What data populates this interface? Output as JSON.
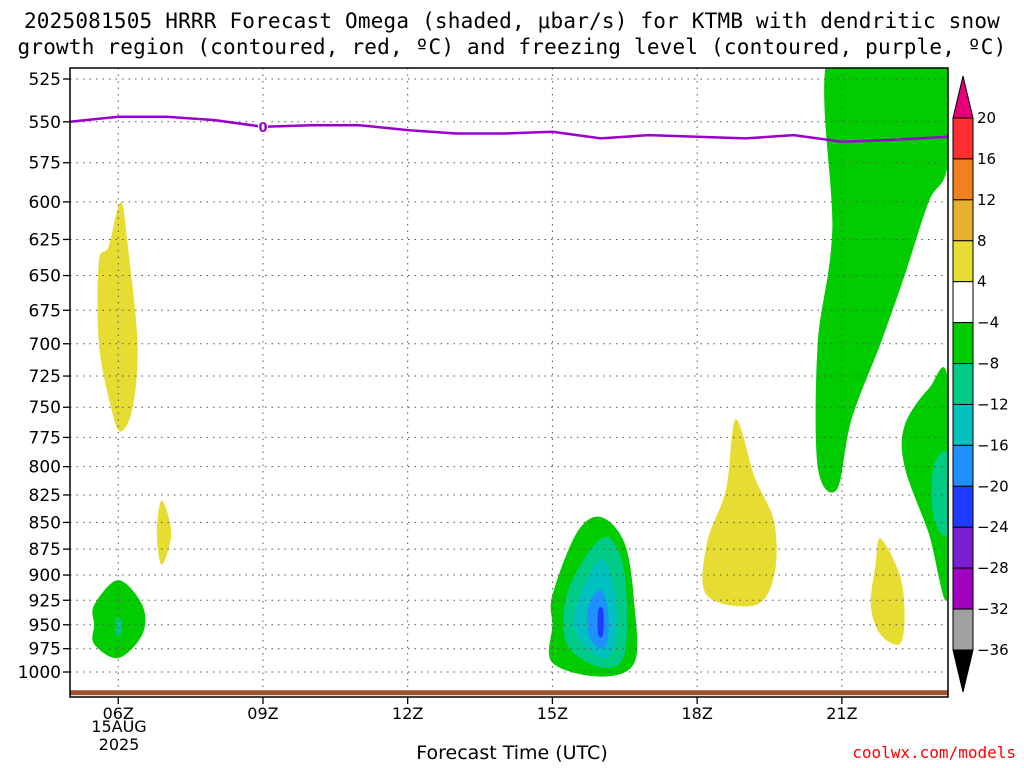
{
  "title": {
    "line1": "2025081505 HRRR Forecast Omega (shaded, μbar/s) for KTMB with dendritic snow",
    "line2": "growth region (contoured, red, ºC) and freezing level (contoured, purple, ºC)"
  },
  "xlabel": "Forecast Time (UTC)",
  "credit": "coolwx.com/models",
  "date_label": [
    "15AUG",
    "2025"
  ],
  "chart_data": {
    "type": "heatmap",
    "title": "2025081505 HRRR Forecast Omega (shaded, μbar/s) for KTMB with dendritic snow growth region (contoured, red, ºC) and freezing level (contoured, purple, ºC)",
    "xlabel": "Forecast Time (UTC)",
    "ylabel": "",
    "x_ticks": [
      "06Z",
      "09Z",
      "12Z",
      "15Z",
      "18Z",
      "21Z"
    ],
    "x_tick_hours": [
      6,
      9,
      12,
      15,
      18,
      21
    ],
    "xlim_hours": [
      5,
      23.2
    ],
    "y_ticks": [
      525,
      550,
      575,
      600,
      625,
      650,
      675,
      700,
      725,
      750,
      775,
      800,
      825,
      850,
      875,
      900,
      925,
      950,
      975,
      1000
    ],
    "ylim": [
      1030,
      505
    ],
    "y_scale": "log-pressure",
    "grid": true,
    "colorbar": {
      "levels": [
        20,
        16,
        12,
        8,
        4,
        -4,
        -8,
        -12,
        -16,
        -20,
        -24,
        -28,
        -32,
        -36
      ],
      "colors": [
        "#e5007a",
        "#ff3030",
        "#f08020",
        "#e8b030",
        "#e6dc32",
        "#ffffff",
        "#00cc00",
        "#00cc88",
        "#00c0c0",
        "#1e90ff",
        "#1e3cff",
        "#7b20d0",
        "#a000c0",
        "#a0a0a0",
        "#000000"
      ]
    },
    "freezing_level": {
      "label": "0",
      "color": "#9900cc",
      "hours": [
        5,
        6,
        7,
        8,
        9,
        10,
        11,
        12,
        13,
        14,
        15,
        16,
        17,
        18,
        19,
        20,
        21,
        22,
        23.2
      ],
      "pressure": [
        550,
        547,
        547,
        549,
        553,
        552,
        552,
        555,
        557,
        557,
        556,
        560,
        558,
        559,
        560,
        558,
        562,
        561,
        559
      ]
    },
    "shaded_regions": [
      {
        "name": "yellow",
        "value": 6,
        "hours": [
          5.8,
          6.05,
          6.2,
          6.4,
          6.3,
          6.05,
          5.85,
          5.6,
          5.6
        ],
        "pressure": [
          630,
          600,
          630,
          700,
          750,
          770,
          750,
          700,
          640
        ]
      },
      {
        "name": "yellow",
        "value": 6,
        "hours": [
          6.9,
          7.1,
          6.9,
          6.8
        ],
        "pressure": [
          830,
          860,
          890,
          860
        ]
      },
      {
        "name": "yellow",
        "value": 6,
        "hours": [
          18.8,
          19.2,
          19.6,
          19.6,
          19.2,
          18.2,
          18.2,
          18.6
        ],
        "pressure": [
          760,
          810,
          850,
          900,
          930,
          920,
          870,
          820
        ]
      },
      {
        "name": "yellow",
        "value": 6,
        "hours": [
          21.8,
          22.2,
          22.3,
          22.2,
          21.8,
          21.6,
          21.7
        ],
        "pressure": [
          865,
          900,
          940,
          970,
          960,
          930,
          890
        ]
      },
      {
        "name": "green",
        "value": -6,
        "hours": [
          5.5,
          6.0,
          6.5,
          6.5,
          6.0,
          5.5,
          5.5
        ],
        "pressure": [
          930,
          905,
          930,
          960,
          985,
          970,
          950
        ]
      },
      {
        "name": "teal",
        "value": -10,
        "hours": [
          5.95,
          6.05,
          6.05,
          5.95
        ],
        "pressure": [
          945,
          945,
          960,
          960
        ]
      },
      {
        "name": "green",
        "value": -6,
        "hours": [
          15.0,
          15.5,
          16.0,
          16.5,
          16.7,
          16.7,
          16.0,
          15.0,
          15.0
        ],
        "pressure": [
          920,
          860,
          845,
          870,
          930,
          990,
          1005,
          990,
          950
        ]
      },
      {
        "name": "teal",
        "value": -10,
        "hours": [
          15.3,
          15.8,
          16.2,
          16.5,
          16.5,
          16.0,
          15.3
        ],
        "pressure": [
          920,
          875,
          865,
          900,
          980,
          995,
          970
        ]
      },
      {
        "name": "cyan",
        "value": -14,
        "hours": [
          15.5,
          16.0,
          16.3,
          16.3,
          16.0,
          15.5
        ],
        "pressure": [
          930,
          885,
          920,
          970,
          985,
          960
        ]
      },
      {
        "name": "blue",
        "value": -18,
        "hours": [
          15.75,
          16.0,
          16.15,
          16.15,
          16.0,
          15.75
        ],
        "pressure": [
          930,
          915,
          935,
          965,
          975,
          960
        ]
      },
      {
        "name": "darkblue",
        "value": -22,
        "hours": [
          15.95,
          16.05,
          16.05,
          15.95
        ],
        "pressure": [
          935,
          935,
          960,
          960
        ]
      },
      {
        "name": "green",
        "value": -6,
        "hours": [
          20.8,
          23.2,
          23.2,
          22.8,
          22.3,
          21.8,
          21.2,
          20.9,
          20.5,
          20.5,
          20.8
        ],
        "pressure": [
          505,
          505,
          575,
          600,
          650,
          700,
          760,
          820,
          800,
          700,
          620
        ]
      },
      {
        "name": "green",
        "value": -6,
        "hours": [
          23.2,
          22.8,
          22.3,
          22.3,
          22.8,
          23.2
        ],
        "pressure": [
          730,
          735,
          765,
          800,
          860,
          920
        ]
      },
      {
        "name": "teal",
        "value": -10,
        "hours": [
          23.2,
          22.9,
          22.9,
          23.2
        ],
        "pressure": [
          790,
          800,
          845,
          860
        ]
      }
    ],
    "terrain": {
      "color": "#a0522d",
      "pressure_top": 1020
    }
  }
}
